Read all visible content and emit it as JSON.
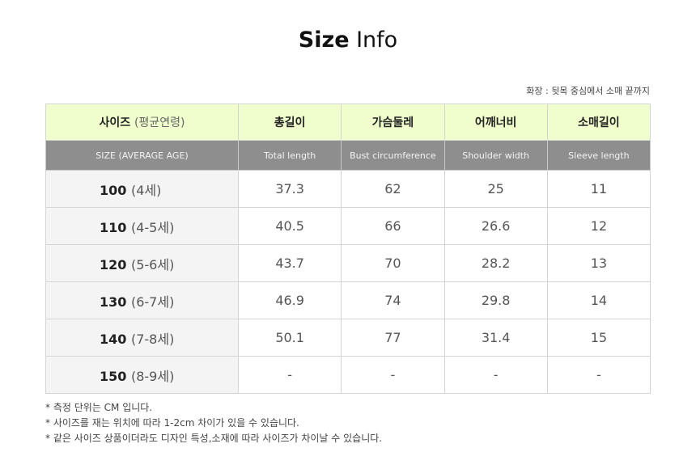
{
  "title": {
    "bold": "Size",
    "rest": " Info"
  },
  "note": "화장 : 뒷목 중심에서 소매 끝까지",
  "header": {
    "size": "사이즈",
    "size_sub": "(평균연령)",
    "cols": [
      "총길이",
      "가슴둘레",
      "어깨너비",
      "소매길이"
    ],
    "en_size": "SIZE (AVERAGE AGE)",
    "en_cols": [
      "Total length",
      "Bust circumference",
      "Shoulder width",
      "Sleeve length"
    ]
  },
  "rows": [
    {
      "size": "100",
      "age": "(4세)",
      "values": [
        "37.3",
        "62",
        "25",
        "11"
      ]
    },
    {
      "size": "110",
      "age": "(4-5세)",
      "values": [
        "40.5",
        "66",
        "26.6",
        "12"
      ]
    },
    {
      "size": "120",
      "age": "(5-6세)",
      "values": [
        "43.7",
        "70",
        "28.2",
        "13"
      ]
    },
    {
      "size": "130",
      "age": "(6-7세)",
      "values": [
        "46.9",
        "74",
        "29.8",
        "14"
      ]
    },
    {
      "size": "140",
      "age": "(7-8세)",
      "values": [
        "50.1",
        "77",
        "31.4",
        "15"
      ]
    },
    {
      "size": "150",
      "age": "(8-9세)",
      "values": [
        "-",
        "-",
        "-",
        "-"
      ]
    }
  ],
  "footnotes": [
    "* 측정 단위는 CM 입니다.",
    "* 사이즈를 재는 위치에 따라 1-2cm 차이가 있을 수 있습니다.",
    "* 같은 사이즈 상품이더라도 디자인 특성,소재에 따라 사이즈가 차이날 수 있습니다."
  ]
}
